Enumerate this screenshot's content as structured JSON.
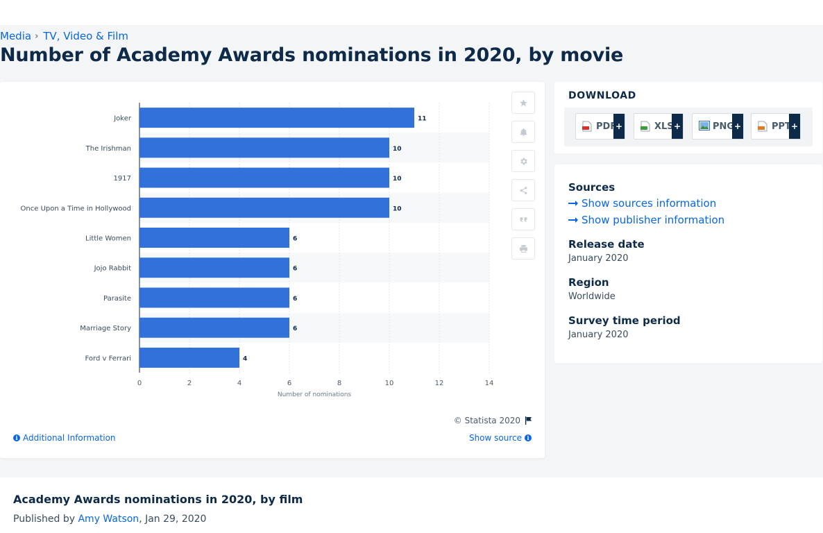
{
  "breadcrumb": {
    "item1": "Media",
    "item2": "TV, Video & Film"
  },
  "page_title": "Number of Academy Awards nominations in 2020, by movie",
  "chart_data": {
    "type": "bar",
    "orientation": "horizontal",
    "categories": [
      "Joker",
      "The Irishman",
      "1917",
      "Once Upon a Time in Hollywood",
      "Little Women",
      "Jojo Rabbit",
      "Parasite",
      "Marriage Story",
      "Ford v Ferrari"
    ],
    "values": [
      11,
      10,
      10,
      10,
      6,
      6,
      6,
      6,
      4
    ],
    "xlabel": "Number of nominations",
    "xlim": [
      0,
      14
    ],
    "xticks": [
      0,
      2,
      4,
      6,
      8,
      10,
      12,
      14
    ],
    "bar_color": "#3171d9",
    "grid": true
  },
  "chart_footer": {
    "copyright": "© Statista 2020",
    "additional_info": "Additional Information",
    "show_source": "Show source"
  },
  "download": {
    "title": "DOWNLOAD",
    "buttons": [
      {
        "label": "PDF",
        "plus": "+"
      },
      {
        "label": "XLS",
        "plus": "+"
      },
      {
        "label": "PNG",
        "plus": "+"
      },
      {
        "label": "PPT",
        "plus": "+"
      }
    ]
  },
  "meta": {
    "sources_label": "Sources",
    "show_sources": "Show sources information",
    "show_publisher": "Show publisher information",
    "release_label": "Release date",
    "release_value": "January 2020",
    "region_label": "Region",
    "region_value": "Worldwide",
    "survey_label": "Survey time period",
    "survey_value": "January 2020"
  },
  "description": {
    "title": "Academy Awards nominations in 2020, by film",
    "published_by": "Published by",
    "author": "Amy Watson",
    "date": ", Jan 29, 2020"
  },
  "colors": {
    "accent": "#0666e5",
    "navy": "#0d2a48",
    "bar": "#3171d9"
  }
}
